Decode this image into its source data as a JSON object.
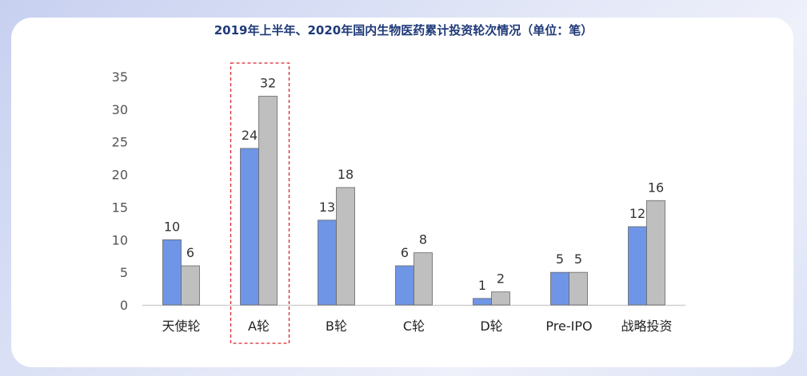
{
  "chart_data": {
    "type": "bar",
    "title": "2019年上半年、2020年国内生物医药累计投资轮次情况（单位：笔）",
    "categories": [
      "天使轮",
      "A轮",
      "B轮",
      "C轮",
      "D轮",
      "Pre-IPO",
      "战略投资"
    ],
    "series": [
      {
        "values": [
          10,
          24,
          13,
          6,
          1,
          5,
          12
        ],
        "color": "#6f95e6"
      },
      {
        "values": [
          6,
          32,
          18,
          8,
          2,
          5,
          16
        ],
        "color": "#bfbfbf"
      }
    ],
    "ylim": [
      0,
      35
    ],
    "yticks": [
      0,
      5,
      10,
      15,
      20,
      25,
      30,
      35
    ],
    "grid": false,
    "highlight_category": "A轮"
  }
}
